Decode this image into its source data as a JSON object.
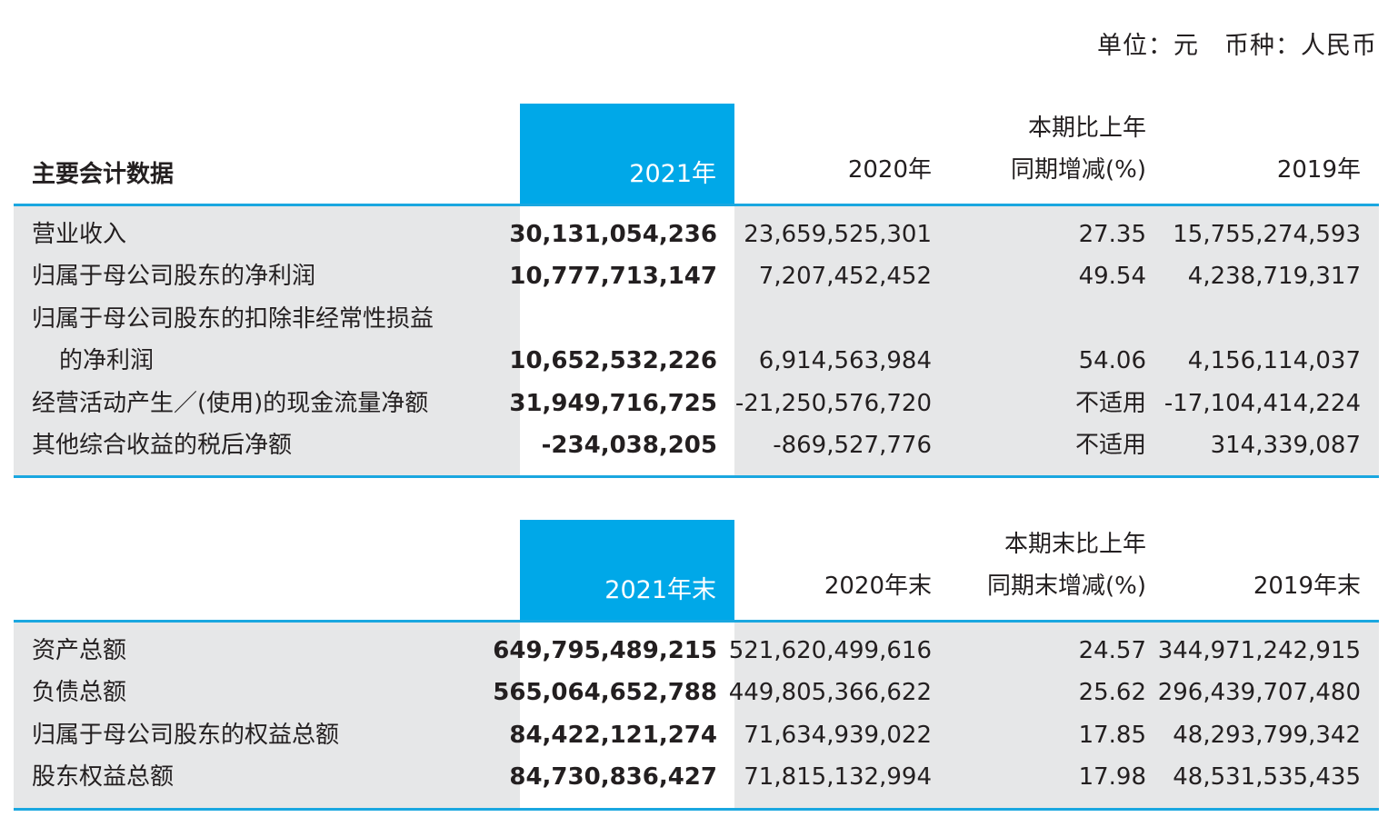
{
  "unit_note": "单位：元　币种：人民币",
  "table1": {
    "header": {
      "label": "主要会计数据",
      "col_current": "2021年",
      "col_prior": "2020年",
      "col_change_line1": "本期比上年",
      "col_change_line2": "同期增减(%)",
      "col_older": "2019年"
    },
    "rows": [
      {
        "label": "营业收入",
        "v2021": "30,131,054,236",
        "v2020": "23,659,525,301",
        "change": "27.35",
        "v2019": "15,755,274,593"
      },
      {
        "label": "归属于母公司股东的净利润",
        "v2021": "10,777,713,147",
        "v2020": "7,207,452,452",
        "change": "49.54",
        "v2019": "4,238,719,317"
      },
      {
        "label": "归属于母公司股东的扣除非经常性损益",
        "label_line2": "的净利润",
        "v2021": "10,652,532,226",
        "v2020": "6,914,563,984",
        "change": "54.06",
        "v2019": "4,156,114,037"
      },
      {
        "label": "经营活动产生／(使用)的现金流量净额",
        "v2021": "31,949,716,725",
        "v2020": "-21,250,576,720",
        "change": "不适用",
        "v2019": "-17,104,414,224"
      },
      {
        "label": "其他综合收益的税后净额",
        "v2021": "-234,038,205",
        "v2020": "-869,527,776",
        "change": "不适用",
        "v2019": "314,339,087"
      }
    ]
  },
  "table2": {
    "header": {
      "label": "",
      "col_current": "2021年末",
      "col_prior": "2020年末",
      "col_change_line1": "本期末比上年",
      "col_change_line2": "同期末增减(%)",
      "col_older": "2019年末"
    },
    "rows": [
      {
        "label": "资产总额",
        "v2021": "649,795,489,215",
        "v2020": "521,620,499,616",
        "change": "24.57",
        "v2019": "344,971,242,915"
      },
      {
        "label": "负债总额",
        "v2021": "565,064,652,788",
        "v2020": "449,805,366,622",
        "change": "25.62",
        "v2019": "296,439,707,480"
      },
      {
        "label": "归属于母公司股东的权益总额",
        "v2021": "84,422,121,274",
        "v2020": "71,634,939,022",
        "change": "17.85",
        "v2019": "48,293,799,342"
      },
      {
        "label": "股东权益总额",
        "v2021": "84,730,836,427",
        "v2020": "71,815,132,994",
        "change": "17.98",
        "v2019": "48,531,535,435"
      }
    ]
  },
  "colors": {
    "accent_blue": "#00a8e8",
    "rule_blue": "#1aa7e0",
    "row_bg": "#e6e7e8"
  }
}
